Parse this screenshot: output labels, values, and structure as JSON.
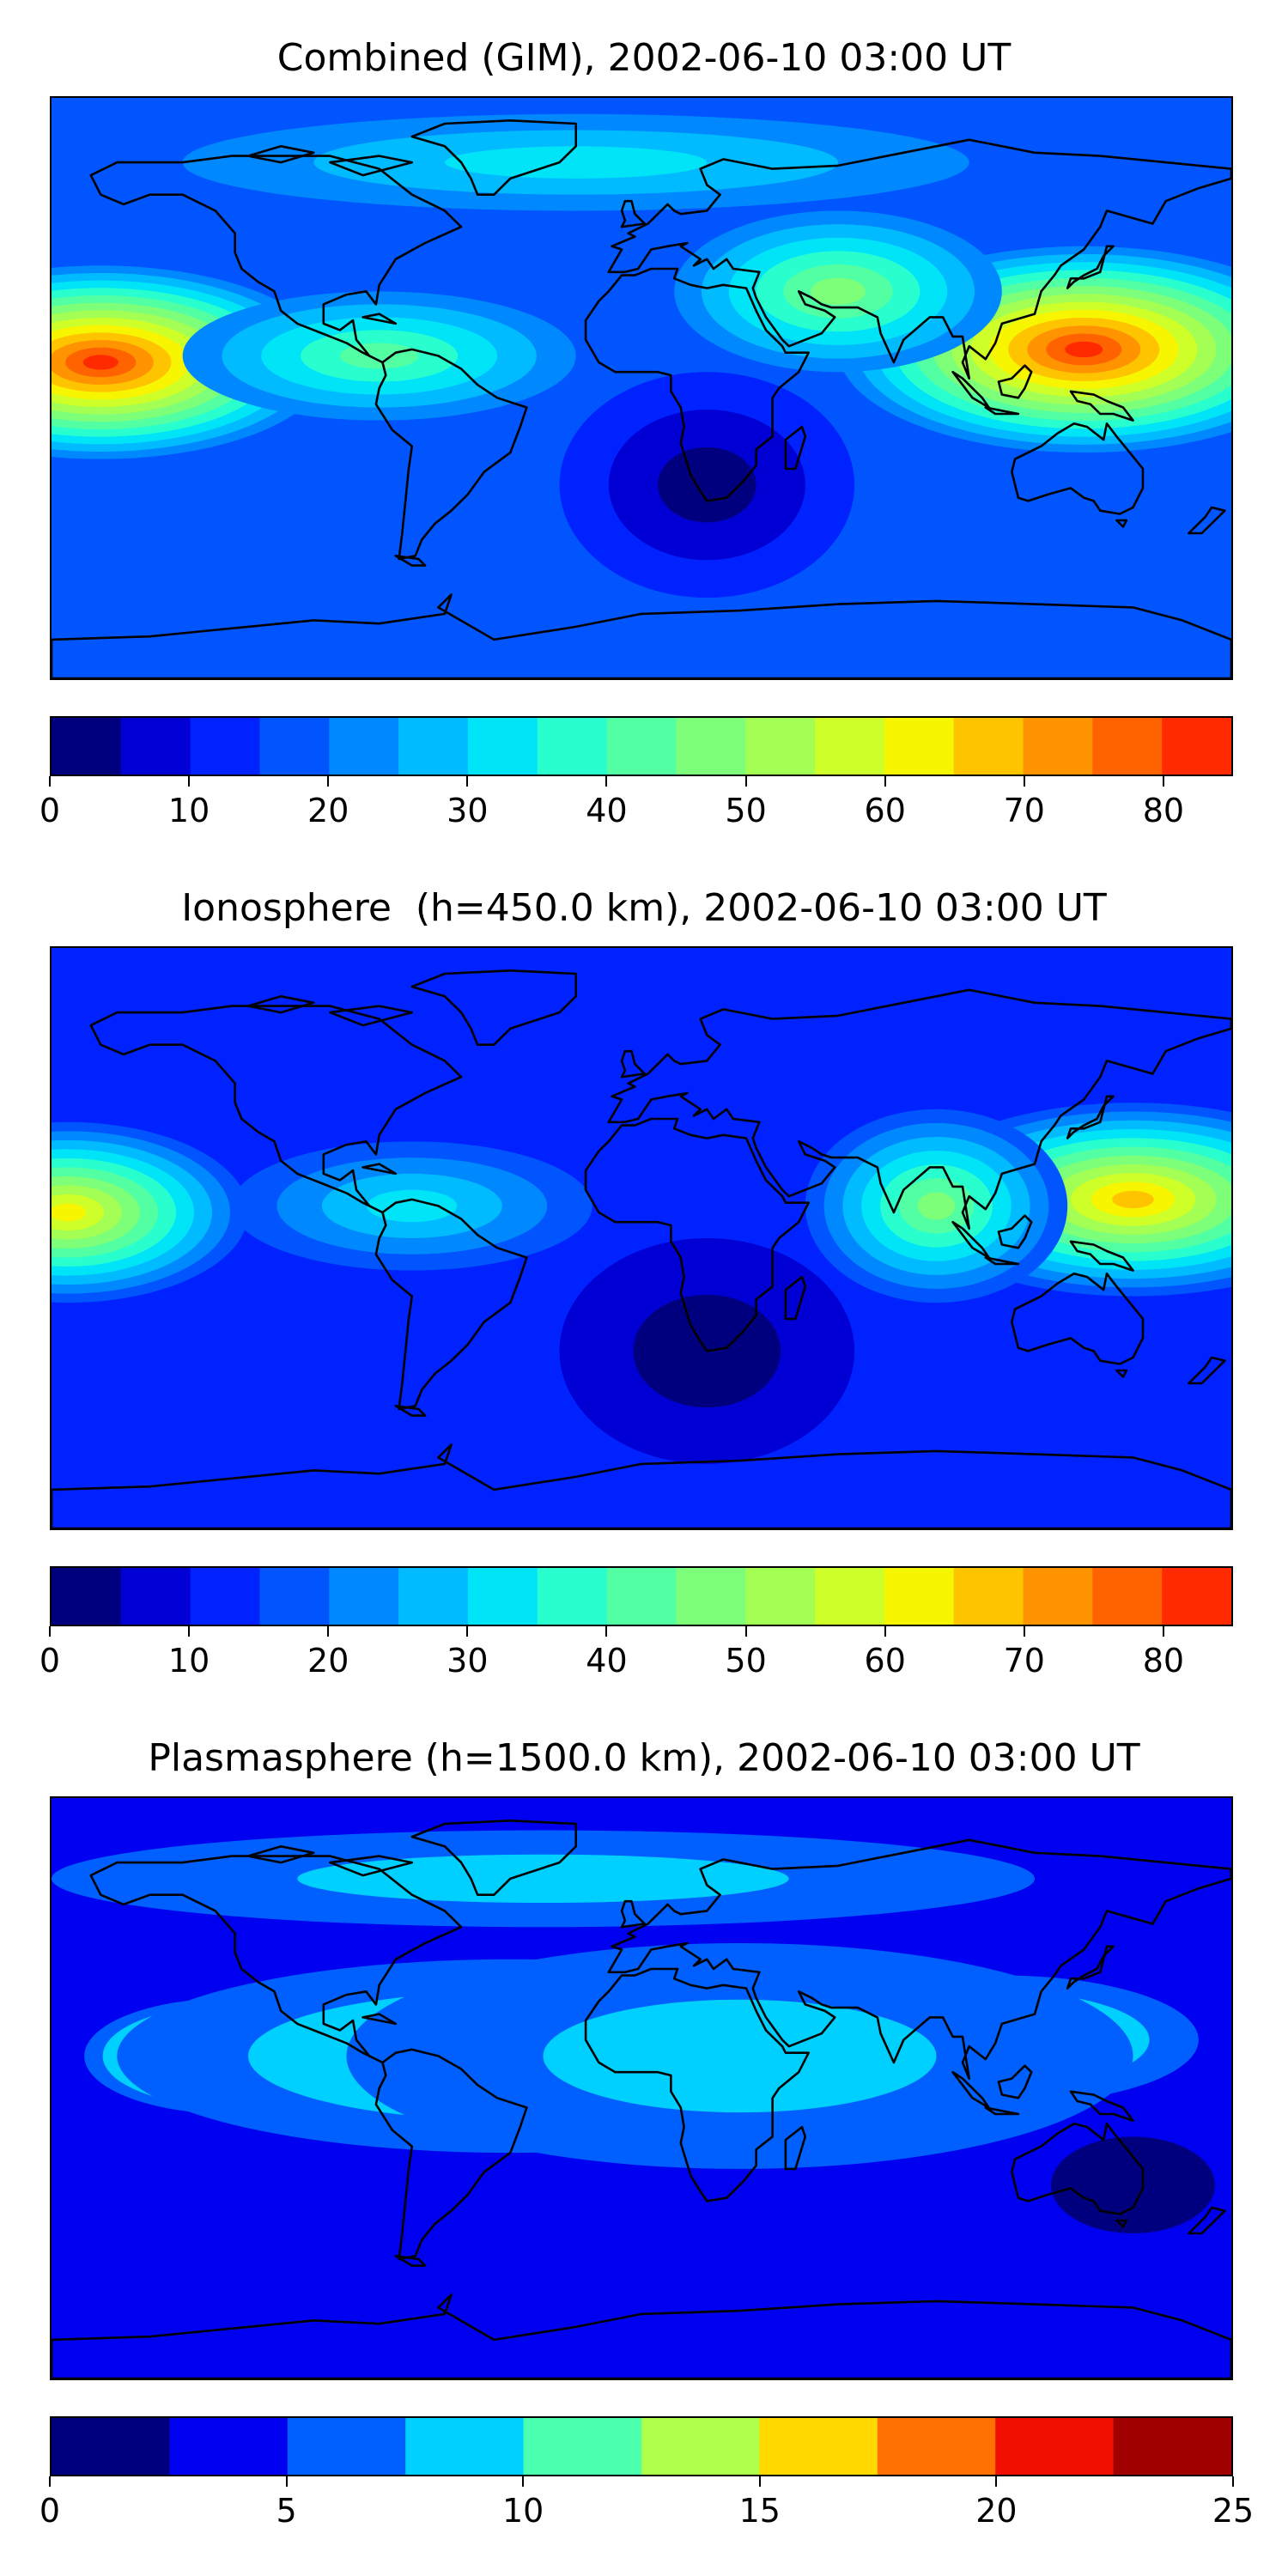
{
  "panels": [
    {
      "title": "Combined (GIM), 2002-06-10 03:00 UT",
      "colorbar": {
        "min": 0,
        "max": 85,
        "step": 5,
        "ticks": [
          0,
          10,
          20,
          30,
          40,
          50,
          60,
          70,
          80
        ],
        "tick_labels": [
          "0",
          "10",
          "20",
          "30",
          "40",
          "50",
          "60",
          "70",
          "80"
        ]
      },
      "field": {
        "background_level": 3,
        "blobs": [
          {
            "lon": -165,
            "lat": 8,
            "rx": 70,
            "ry": 30,
            "peak": 16
          },
          {
            "lon": 135,
            "lat": 12,
            "rx": 75,
            "ry": 32,
            "peak": 16
          },
          {
            "lon": -80,
            "lat": 10,
            "rx": 60,
            "ry": 20,
            "peak": 8
          },
          {
            "lon": 60,
            "lat": 30,
            "rx": 50,
            "ry": 25,
            "peak": 9
          },
          {
            "lon": -20,
            "lat": 70,
            "rx": 120,
            "ry": 15,
            "peak": 6
          },
          {
            "lon": 20,
            "lat": -30,
            "rx": 45,
            "ry": 35,
            "peak": 0
          }
        ]
      }
    },
    {
      "title": "Ionosphere  (h=450.0 km), 2002-06-10 03:00 UT",
      "colorbar": {
        "min": 0,
        "max": 85,
        "step": 5,
        "ticks": [
          0,
          10,
          20,
          30,
          40,
          50,
          60,
          70,
          80
        ],
        "tick_labels": [
          "0",
          "10",
          "20",
          "30",
          "40",
          "50",
          "60",
          "70",
          "80"
        ]
      },
      "field": {
        "background_level": 2,
        "blobs": [
          {
            "lon": -175,
            "lat": 8,
            "rx": 55,
            "ry": 28,
            "peak": 12
          },
          {
            "lon": 150,
            "lat": 12,
            "rx": 70,
            "ry": 30,
            "peak": 13
          },
          {
            "lon": -70,
            "lat": 10,
            "rx": 55,
            "ry": 20,
            "peak": 6
          },
          {
            "lon": 90,
            "lat": 10,
            "rx": 40,
            "ry": 30,
            "peak": 9
          },
          {
            "lon": 20,
            "lat": -35,
            "rx": 45,
            "ry": 35,
            "peak": 0
          }
        ]
      }
    },
    {
      "title": "Plasmasphere (h=1500.0 km), 2002-06-10 03:00 UT",
      "colorbar": {
        "min": 0,
        "max": 25,
        "step": 2.5,
        "ticks": [
          0,
          5,
          10,
          15,
          20,
          25
        ],
        "tick_labels": [
          "0",
          "5",
          "10",
          "15",
          "20",
          "25"
        ]
      },
      "field": {
        "background_level": 1,
        "blobs": [
          {
            "lon": -125,
            "lat": 10,
            "rx": 45,
            "ry": 18,
            "peak": 9
          },
          {
            "lon": -40,
            "lat": 10,
            "rx": 120,
            "ry": 30,
            "peak": 4
          },
          {
            "lon": 110,
            "lat": 15,
            "rx": 60,
            "ry": 20,
            "peak": 5
          },
          {
            "lon": 30,
            "lat": 10,
            "rx": 120,
            "ry": 35,
            "peak": 3
          },
          {
            "lon": -30,
            "lat": 65,
            "rx": 150,
            "ry": 15,
            "peak": 3
          },
          {
            "lon": 150,
            "lat": -30,
            "rx": 25,
            "ry": 15,
            "peak": 0
          }
        ]
      }
    }
  ],
  "colors": {
    "jet17": [
      "#00007f",
      "#0000d4",
      "#0022ff",
      "#0055ff",
      "#0088ff",
      "#00bbff",
      "#00e4f8",
      "#29ffce",
      "#53ffa3",
      "#7dff7a",
      "#a3ff53",
      "#ceff29",
      "#f8f500",
      "#ffc400",
      "#ff9400",
      "#ff6300",
      "#ff2a00"
    ],
    "jet10": [
      "#00007f",
      "#0000f0",
      "#0060ff",
      "#00d0ff",
      "#4affad",
      "#adff4a",
      "#ffd900",
      "#ff7100",
      "#f00f00",
      "#a00000"
    ],
    "land_outline": "#000000"
  }
}
